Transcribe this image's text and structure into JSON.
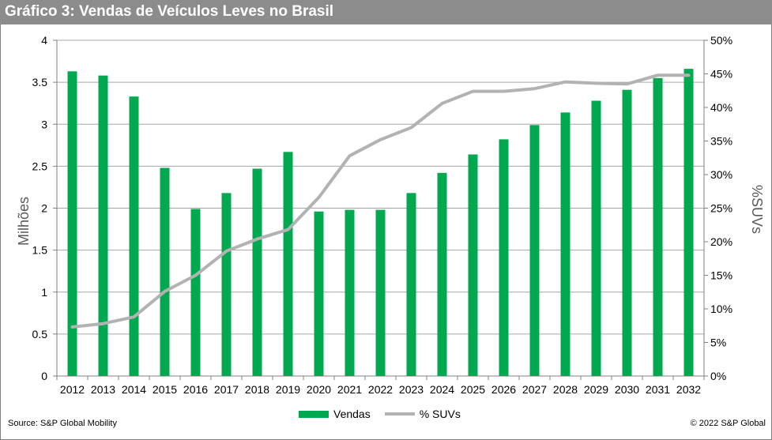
{
  "chart_data": {
    "type": "bar",
    "title": "Gráfico 3: Vendas de Veículos Leves no Brasil",
    "categories": [
      "2012",
      "2013",
      "2014",
      "2015",
      "2016",
      "2017",
      "2018",
      "2019",
      "2020",
      "2021",
      "2022",
      "2023",
      "2024",
      "2025",
      "2026",
      "2027",
      "2028",
      "2029",
      "2030",
      "2031",
      "2032"
    ],
    "series": [
      {
        "name": "Vendas",
        "type": "bar",
        "axis": "left",
        "color": "#00a94f",
        "values": [
          3.63,
          3.58,
          3.33,
          2.48,
          1.99,
          2.18,
          2.47,
          2.67,
          1.96,
          1.98,
          1.98,
          2.18,
          2.42,
          2.64,
          2.82,
          2.99,
          3.14,
          3.28,
          3.41,
          3.55,
          3.66
        ]
      },
      {
        "name": "% SUVs",
        "type": "line",
        "axis": "right",
        "color": "#b2b2b2",
        "values": [
          7.3,
          7.8,
          8.8,
          12.6,
          15.0,
          18.6,
          20.4,
          21.8,
          26.6,
          32.8,
          35.2,
          37.0,
          40.6,
          42.4,
          42.4,
          42.8,
          43.8,
          43.6,
          43.5,
          44.8,
          44.8
        ]
      }
    ],
    "ylabel": "Milhões",
    "y2label": "%SUVs",
    "ylim": [
      0,
      4
    ],
    "y2lim": [
      0,
      50
    ],
    "yticks": [
      "0",
      "0.5",
      "1",
      "1.5",
      "2",
      "2.5",
      "3",
      "3.5",
      "4"
    ],
    "y2ticks": [
      "0%",
      "5%",
      "10%",
      "15%",
      "20%",
      "25%",
      "30%",
      "35%",
      "40%",
      "45%",
      "50%"
    ],
    "grid": true,
    "legend_position": "bottom-center"
  },
  "legend": {
    "bar_label": "Vendas",
    "line_label": "% SUVs"
  },
  "footer": {
    "source": "Source: S&P Global Mobility",
    "copyright": "© 2022 S&P Global"
  }
}
